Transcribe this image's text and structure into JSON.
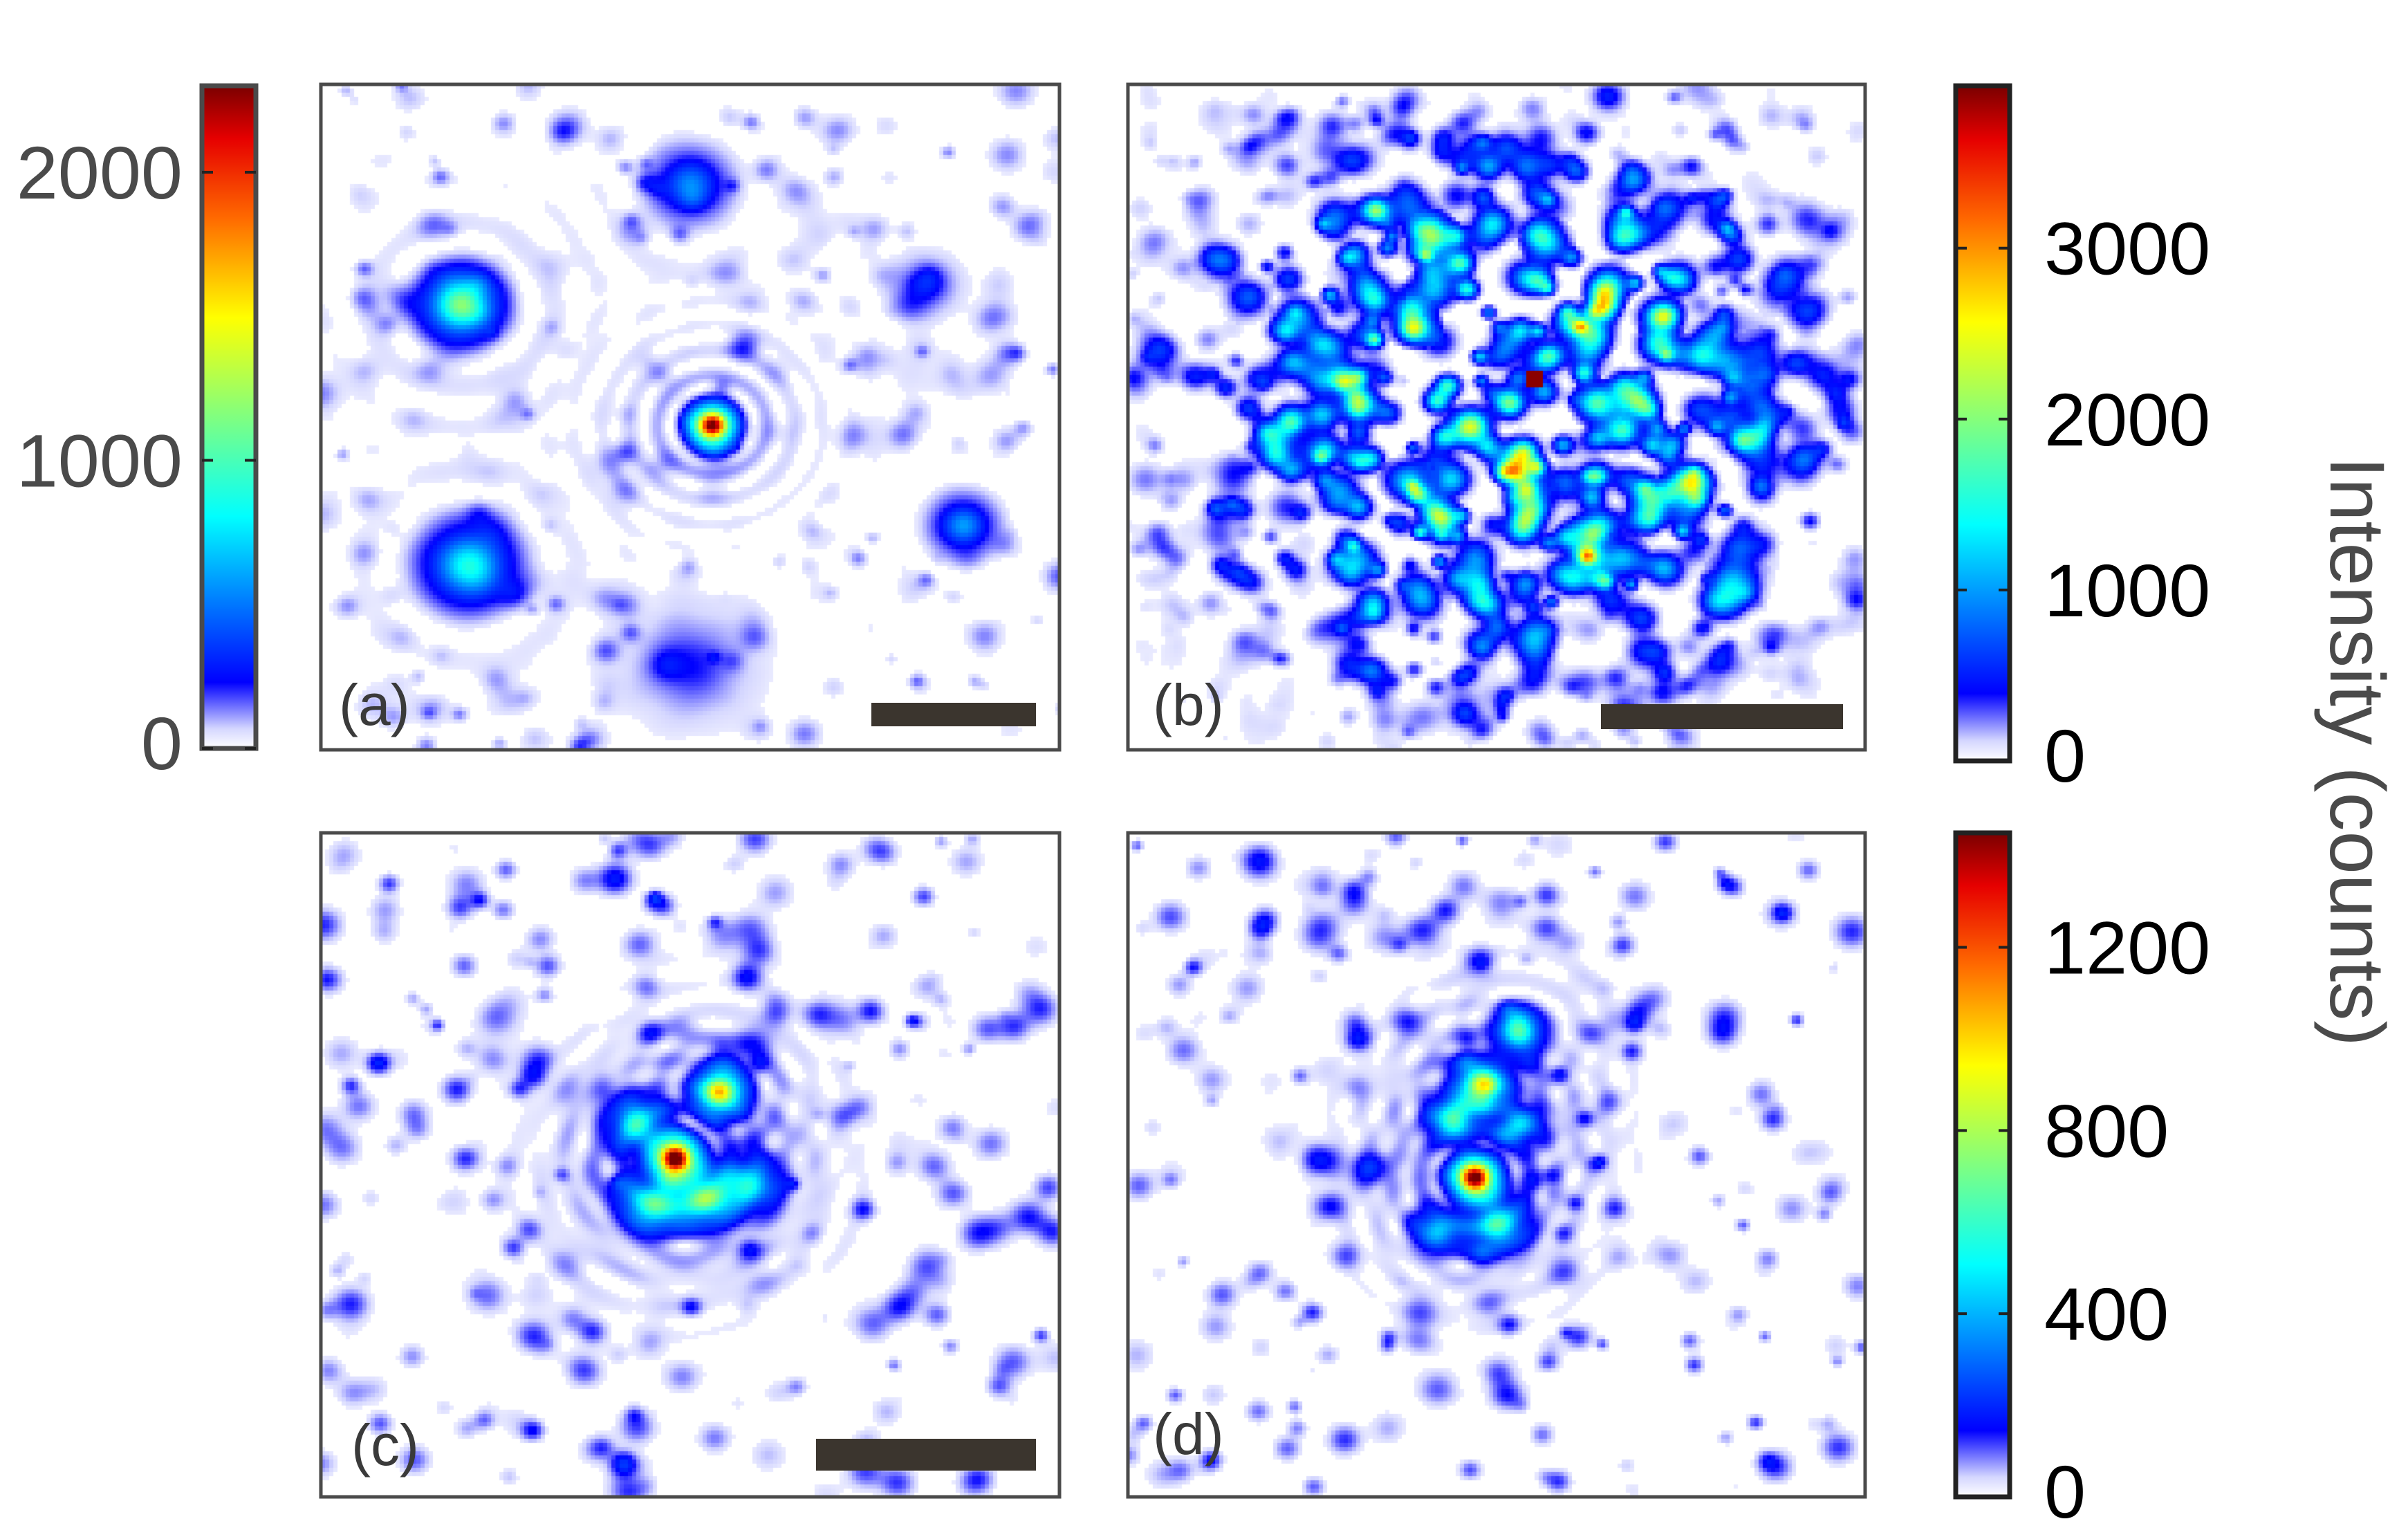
{
  "chart_data": {
    "type": "heatmap",
    "colormap": "jet",
    "ylabel": "Intensity (counts)",
    "colorbars": [
      {
        "id": "cb-a",
        "applies_to": [
          "a"
        ],
        "range": [
          0,
          2300
        ],
        "ticks": [
          0,
          1000,
          2000
        ],
        "tick_labels": [
          "0",
          "1000",
          "2000"
        ],
        "label_side": "left",
        "label_color": "#4a4a4a"
      },
      {
        "id": "cb-b",
        "applies_to": [
          "b"
        ],
        "range": [
          0,
          3950
        ],
        "ticks": [
          0,
          1000,
          2000,
          3000
        ],
        "tick_labels": [
          "0",
          "1000",
          "2000",
          "3000"
        ],
        "label_side": "right",
        "label_color": "#000000"
      },
      {
        "id": "cb-cd",
        "applies_to": [
          "c",
          "d"
        ],
        "range": [
          0,
          1450
        ],
        "ticks": [
          0,
          400,
          800,
          1200
        ],
        "tick_labels": [
          "0",
          "400",
          "800",
          "1200"
        ],
        "label_side": "right",
        "label_color": "#000000"
      }
    ],
    "panels": [
      {
        "id": "a",
        "label": "(a)",
        "scale_bar": true,
        "colorbar": "cb-a",
        "grid": false,
        "blobs": [
          {
            "x": 0.53,
            "y": 0.51,
            "peak": 2150,
            "spread": 0.018,
            "note": "central spot with concentric rings"
          },
          {
            "x": 0.19,
            "y": 0.33,
            "peak": 1050,
            "spread": 0.03
          },
          {
            "x": 0.2,
            "y": 0.72,
            "peak": 780,
            "spread": 0.035
          },
          {
            "x": 0.5,
            "y": 0.15,
            "peak": 480,
            "spread": 0.03
          },
          {
            "x": 0.87,
            "y": 0.66,
            "peak": 520,
            "spread": 0.025
          },
          {
            "x": 0.82,
            "y": 0.3,
            "peak": 260,
            "spread": 0.025
          },
          {
            "x": 0.5,
            "y": 0.87,
            "peak": 200,
            "spread": 0.05
          }
        ]
      },
      {
        "id": "b",
        "label": "(b)",
        "scale_bar": true,
        "colorbar": "cb-b",
        "grid": false,
        "speckle": {
          "x": 0.52,
          "y": 0.47,
          "radius": 0.24,
          "peak": 3900,
          "mean": 900
        }
      },
      {
        "id": "c",
        "label": "(c)",
        "scale_bar": true,
        "colorbar": "cb-cd",
        "grid": false,
        "blobs": [
          {
            "x": 0.48,
            "y": 0.49,
            "peak": 1400,
            "spread": 0.018,
            "note": "brightest vertical lobe"
          },
          {
            "x": 0.54,
            "y": 0.39,
            "peak": 900,
            "spread": 0.02
          },
          {
            "x": 0.52,
            "y": 0.55,
            "peak": 620,
            "spread": 0.025
          },
          {
            "x": 0.45,
            "y": 0.56,
            "peak": 560,
            "spread": 0.025
          },
          {
            "x": 0.58,
            "y": 0.53,
            "peak": 440,
            "spread": 0.025
          },
          {
            "x": 0.43,
            "y": 0.44,
            "peak": 420,
            "spread": 0.025
          }
        ]
      },
      {
        "id": "d",
        "label": "(d)",
        "scale_bar": false,
        "colorbar": "cb-cd",
        "grid": false,
        "blobs": [
          {
            "x": 0.47,
            "y": 0.52,
            "peak": 1380,
            "spread": 0.018,
            "note": "brightest horizontal lobe"
          },
          {
            "x": 0.48,
            "y": 0.38,
            "peak": 820,
            "spread": 0.02
          },
          {
            "x": 0.44,
            "y": 0.43,
            "peak": 560,
            "spread": 0.02
          },
          {
            "x": 0.5,
            "y": 0.59,
            "peak": 520,
            "spread": 0.025
          },
          {
            "x": 0.53,
            "y": 0.3,
            "peak": 520,
            "spread": 0.02
          },
          {
            "x": 0.42,
            "y": 0.6,
            "peak": 380,
            "spread": 0.02
          },
          {
            "x": 0.53,
            "y": 0.44,
            "peak": 360,
            "spread": 0.02
          }
        ]
      }
    ]
  },
  "colors": {
    "frame": "#4a4a4a",
    "scale_bar": "#3b352e",
    "panel_label": "#3a3a3a"
  }
}
